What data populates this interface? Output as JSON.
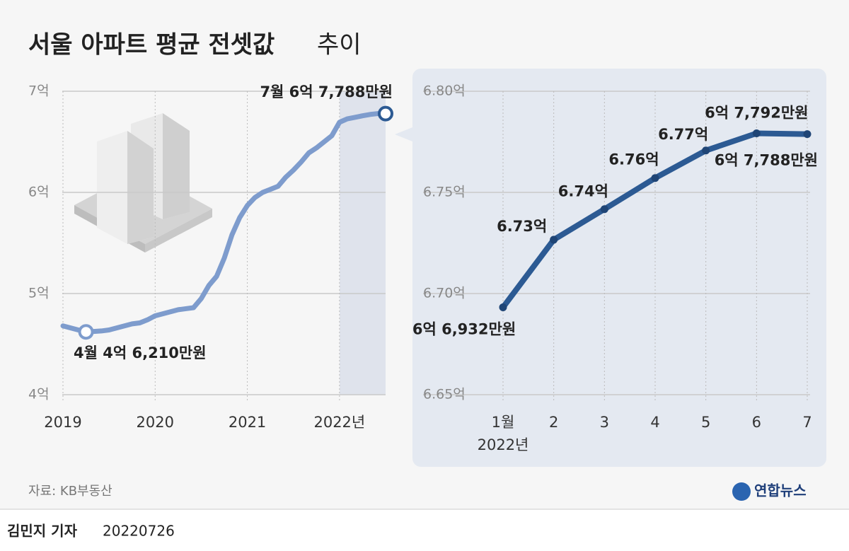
{
  "title_bold": "서울 아파트 평균 전셋값",
  "title_rest": "추이",
  "source": "자료: KB부동산",
  "logo": "연합뉴스",
  "byline": "김민지 기자",
  "date": "20220726",
  "chart_data": [
    {
      "type": "line",
      "color": "#7e9ccd",
      "categories": [
        "2019",
        null,
        null,
        null,
        null,
        null,
        null,
        null,
        null,
        null,
        null,
        null,
        "2020",
        null,
        null,
        null,
        null,
        null,
        null,
        null,
        null,
        null,
        null,
        null,
        "2021",
        null,
        null,
        null,
        null,
        null,
        null,
        null,
        null,
        null,
        null,
        null,
        "2022년",
        null,
        null,
        null,
        null,
        null,
        null
      ],
      "values": [
        4.68,
        4.66,
        4.64,
        4.621,
        4.625,
        4.63,
        4.64,
        4.66,
        4.68,
        4.7,
        4.71,
        4.74,
        4.78,
        4.8,
        4.82,
        4.84,
        4.85,
        4.86,
        4.95,
        5.08,
        5.17,
        5.35,
        5.58,
        5.75,
        5.87,
        5.95,
        6.0,
        6.03,
        6.06,
        6.15,
        6.22,
        6.3,
        6.39,
        6.44,
        6.5,
        6.56,
        6.6932,
        6.7266,
        6.7417,
        6.7571,
        6.7707,
        6.7792,
        6.7788
      ],
      "annotations": [
        "4월 4억 6,210만원",
        "7월 6억 7,788만원"
      ],
      "ylim": [
        4,
        7
      ],
      "yticks": [
        {
          "value": 4,
          "label": "4억"
        },
        {
          "value": 5,
          "label": "5억"
        },
        {
          "value": 6,
          "label": "6억"
        },
        {
          "value": 7,
          "label": "7억"
        }
      ],
      "grid": true
    },
    {
      "type": "line",
      "color": "#2c5a93",
      "categories": [
        "1월",
        "2",
        "3",
        "4",
        "5",
        "6",
        "7"
      ],
      "year_label": "2022년",
      "values": [
        6.6932,
        6.7266,
        6.7417,
        6.7571,
        6.7707,
        6.7792,
        6.7788
      ],
      "value_labels": [
        "6억 6,932만원",
        "6.73억",
        "6.74억",
        "6.76억",
        "6.77억",
        "6억 7,792만원",
        "6억 7,788만원"
      ],
      "ylim": [
        6.65,
        6.8
      ],
      "yticks": [
        {
          "value": 6.65,
          "label": "6.65억"
        },
        {
          "value": 6.7,
          "label": "6.70억"
        },
        {
          "value": 6.75,
          "label": "6.75억"
        },
        {
          "value": 6.8,
          "label": "6.80억"
        }
      ],
      "grid": true
    }
  ]
}
